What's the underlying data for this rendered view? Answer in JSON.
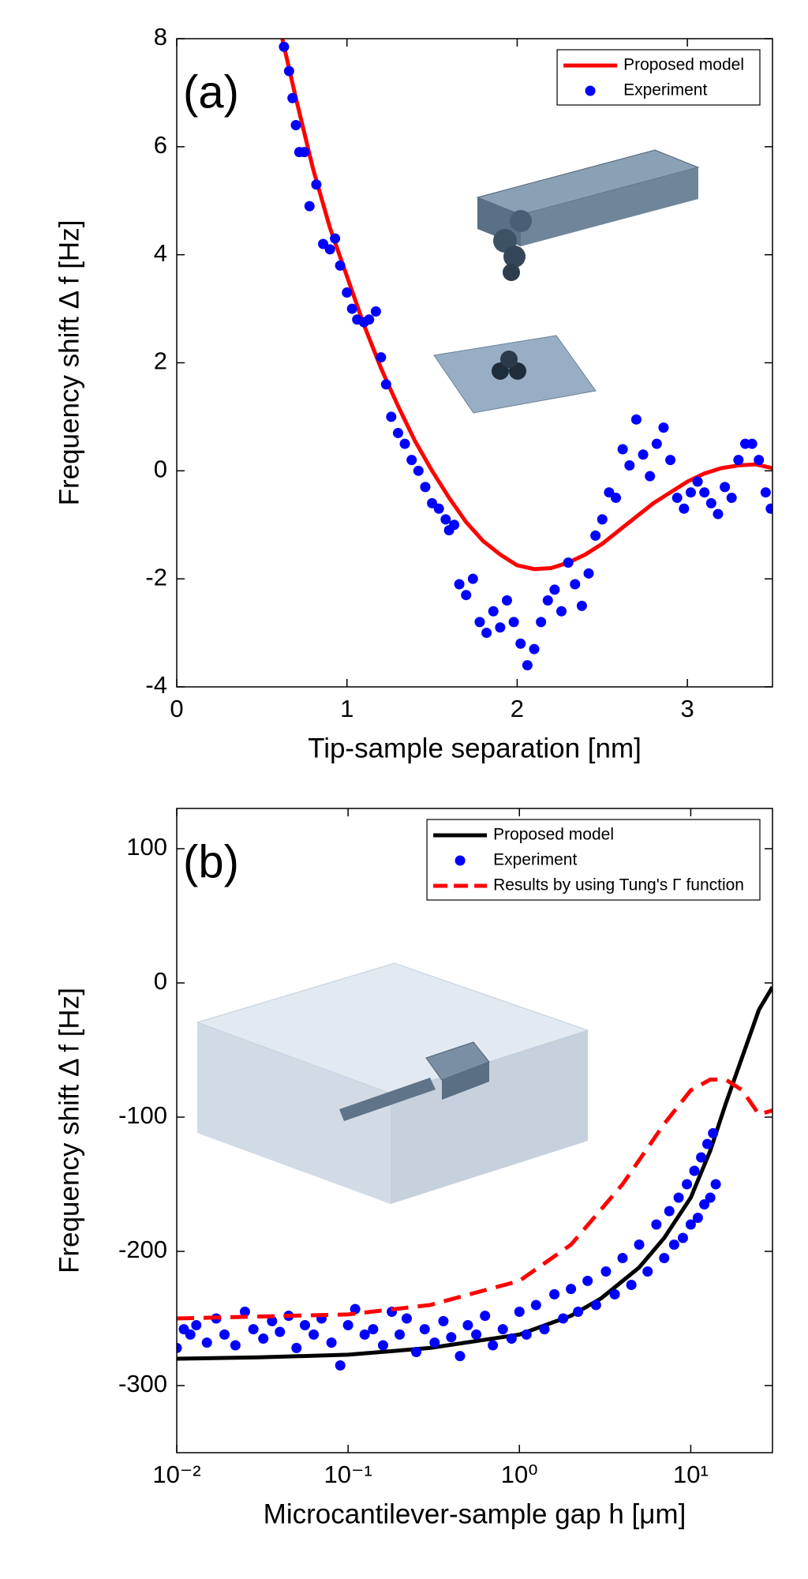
{
  "chart_data": [
    {
      "type": "line",
      "annotation": "(a)",
      "x_label": "Tip-sample separation  [nm]",
      "y_label": "Frequency shift   Δ f [Hz]",
      "xlim": [
        0,
        3.5
      ],
      "ylim": [
        -4,
        8
      ],
      "xticks": [
        0,
        1,
        2,
        3
      ],
      "yticks": [
        -4,
        -2,
        0,
        2,
        4,
        6,
        8
      ],
      "legend": "upper right",
      "series": [
        {
          "name": "Proposed model",
          "color": "#ff0000",
          "mode": "line",
          "x": [
            0.62,
            0.7,
            0.8,
            0.9,
            1.0,
            1.1,
            1.2,
            1.3,
            1.4,
            1.5,
            1.6,
            1.7,
            1.8,
            1.9,
            2.0,
            2.1,
            2.2,
            2.3,
            2.4,
            2.5,
            2.6,
            2.7,
            2.8,
            2.9,
            3.0,
            3.1,
            3.2,
            3.3,
            3.4,
            3.5
          ],
          "values": [
            8,
            6.9,
            5.6,
            4.5,
            3.6,
            2.7,
            1.9,
            1.2,
            0.55,
            0,
            -0.5,
            -0.95,
            -1.3,
            -1.55,
            -1.75,
            -1.82,
            -1.8,
            -1.7,
            -1.55,
            -1.35,
            -1.1,
            -0.85,
            -0.6,
            -0.4,
            -0.2,
            -0.05,
            0.05,
            0.1,
            0.12,
            0.05
          ]
        },
        {
          "name": "Experiment",
          "color": "#0000ff",
          "mode": "markers",
          "x": [
            0.63,
            0.66,
            0.68,
            0.7,
            0.72,
            0.75,
            0.78,
            0.82,
            0.86,
            0.9,
            0.93,
            0.96,
            1.0,
            1.03,
            1.06,
            1.1,
            1.13,
            1.17,
            1.2,
            1.23,
            1.26,
            1.3,
            1.34,
            1.38,
            1.42,
            1.46,
            1.5,
            1.54,
            1.58,
            1.6,
            1.63,
            1.66,
            1.7,
            1.74,
            1.78,
            1.82,
            1.86,
            1.9,
            1.94,
            1.98,
            2.02,
            2.06,
            2.1,
            2.14,
            2.18,
            2.22,
            2.26,
            2.3,
            2.34,
            2.38,
            2.42,
            2.46,
            2.5,
            2.54,
            2.58,
            2.62,
            2.66,
            2.7,
            2.74,
            2.78,
            2.82,
            2.86,
            2.9,
            2.94,
            2.98,
            3.02,
            3.06,
            3.1,
            3.14,
            3.18,
            3.22,
            3.26,
            3.3,
            3.34,
            3.38,
            3.42,
            3.46,
            3.49
          ],
          "values": [
            7.85,
            7.4,
            6.9,
            6.4,
            5.9,
            5.9,
            4.9,
            5.3,
            4.2,
            4.1,
            4.3,
            3.8,
            3.3,
            3.0,
            2.8,
            2.75,
            2.8,
            2.95,
            2.1,
            1.6,
            1.0,
            0.7,
            0.5,
            0.2,
            0,
            -0.3,
            -0.6,
            -0.7,
            -0.9,
            -1.1,
            -1.0,
            -2.1,
            -2.3,
            -2.0,
            -2.8,
            -3.0,
            -2.6,
            -2.9,
            -2.4,
            -2.8,
            -3.2,
            -3.6,
            -3.3,
            -2.8,
            -2.4,
            -2.2,
            -2.6,
            -1.7,
            -2.1,
            -2.5,
            -1.9,
            -1.2,
            -0.9,
            -0.4,
            -0.5,
            0.4,
            0.1,
            0.95,
            0.3,
            -0.1,
            0.5,
            0.8,
            0.2,
            -0.5,
            -0.7,
            -0.4,
            -0.2,
            -0.4,
            -0.6,
            -0.8,
            -0.3,
            -0.5,
            0.2,
            0.5,
            0.5,
            0.2,
            -0.4,
            -0.7
          ]
        }
      ]
    },
    {
      "type": "line",
      "annotation": "(b)",
      "x_label": "Microcantilever-sample gap h [μm]",
      "y_label": "Frequency shift  Δ f [Hz]",
      "xlog": true,
      "xlim": [
        0.01,
        30
      ],
      "ylim": [
        -350,
        130
      ],
      "xticks": [
        {
          "value": 0.01,
          "label": "10⁻²"
        },
        {
          "value": 0.1,
          "label": "10⁻¹"
        },
        {
          "value": 1,
          "label": "10⁰"
        },
        {
          "value": 10,
          "label": "10¹"
        }
      ],
      "yticks": [
        -300,
        -200,
        -100,
        0,
        100
      ],
      "legend": "upper right",
      "series": [
        {
          "name": "Proposed model",
          "color": "#000000",
          "mode": "line",
          "x": [
            0.01,
            0.03,
            0.1,
            0.3,
            1,
            2,
            3,
            5,
            7,
            10,
            13,
            16,
            20,
            25,
            30
          ],
          "values": [
            -280,
            -279,
            -277,
            -272,
            -262,
            -248,
            -235,
            -212,
            -190,
            -160,
            -125,
            -90,
            -55,
            -20,
            -3
          ]
        },
        {
          "name": "Experiment",
          "color": "#0000ff",
          "mode": "markers",
          "x": [
            0.01,
            0.011,
            0.012,
            0.013,
            0.015,
            0.017,
            0.019,
            0.022,
            0.025,
            0.028,
            0.032,
            0.036,
            0.04,
            0.045,
            0.05,
            0.056,
            0.063,
            0.07,
            0.08,
            0.09,
            0.1,
            0.11,
            0.125,
            0.14,
            0.16,
            0.18,
            0.2,
            0.22,
            0.25,
            0.28,
            0.32,
            0.36,
            0.4,
            0.45,
            0.5,
            0.56,
            0.63,
            0.7,
            0.8,
            0.9,
            1.0,
            1.1,
            1.25,
            1.4,
            1.6,
            1.8,
            2.0,
            2.2,
            2.5,
            2.8,
            3.2,
            3.6,
            4.0,
            4.5,
            5.0,
            5.6,
            6.3,
            7.0,
            7.5,
            8.0,
            8.5,
            9.0,
            9.5,
            10,
            10.5,
            11,
            11.5,
            12,
            12.5,
            13,
            13.5,
            14
          ],
          "values": [
            -272,
            -258,
            -262,
            -255,
            -268,
            -250,
            -262,
            -270,
            -245,
            -258,
            -265,
            -252,
            -260,
            -248,
            -272,
            -255,
            -262,
            -250,
            -268,
            -285,
            -255,
            -243,
            -262,
            -258,
            -270,
            -245,
            -262,
            -250,
            -275,
            -258,
            -268,
            -252,
            -264,
            -278,
            -255,
            -262,
            -248,
            -270,
            -258,
            -265,
            -245,
            -262,
            -240,
            -258,
            -232,
            -250,
            -228,
            -245,
            -222,
            -240,
            -215,
            -232,
            -205,
            -225,
            -195,
            -215,
            -180,
            -205,
            -170,
            -195,
            -160,
            -190,
            -150,
            -180,
            -140,
            -175,
            -130,
            -165,
            -120,
            -160,
            -112,
            -150
          ]
        },
        {
          "name": "Results by using Tung's Γ function",
          "color": "#ff0000",
          "mode": "dashed",
          "x": [
            0.01,
            0.1,
            0.3,
            1,
            2,
            4,
            7,
            10,
            13,
            16,
            20,
            25,
            30
          ],
          "values": [
            -250,
            -247,
            -240,
            -222,
            -195,
            -150,
            -105,
            -80,
            -72,
            -72,
            -80,
            -98,
            -95
          ]
        }
      ]
    }
  ]
}
